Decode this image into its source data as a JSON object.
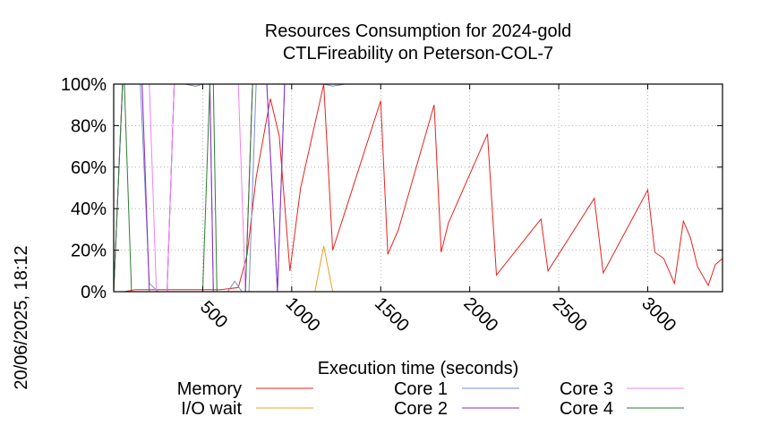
{
  "chart_data": {
    "type": "line",
    "title": "Resources Consumption for 2024-gold",
    "subtitle": "CTLFireability on Peterson-COL-7",
    "xlabel": "Execution time (seconds)",
    "ylabel": "",
    "side_label": "20/06/2025, 18:12",
    "xlim": [
      0,
      3420
    ],
    "ylim": [
      0,
      100
    ],
    "x_ticks": [
      500,
      1000,
      1500,
      2000,
      2500,
      3000
    ],
    "y_ticks": [
      0,
      20,
      40,
      60,
      80,
      100
    ],
    "y_tick_labels": [
      "0%",
      "20%",
      "40%",
      "60%",
      "80%",
      "100%"
    ],
    "grid": true,
    "legend_position": "bottom",
    "series": [
      {
        "name": "Memory",
        "color": "#e8231e",
        "points": [
          [
            0,
            0
          ],
          [
            60,
            0
          ],
          [
            120,
            1
          ],
          [
            200,
            1
          ],
          [
            300,
            1
          ],
          [
            400,
            1
          ],
          [
            500,
            1
          ],
          [
            600,
            1
          ],
          [
            700,
            2
          ],
          [
            750,
            18
          ],
          [
            800,
            55
          ],
          [
            880,
            93
          ],
          [
            930,
            75
          ],
          [
            990,
            10
          ],
          [
            1050,
            50
          ],
          [
            1180,
            100
          ],
          [
            1230,
            20
          ],
          [
            1500,
            92
          ],
          [
            1540,
            18
          ],
          [
            1600,
            30
          ],
          [
            1800,
            90
          ],
          [
            1840,
            19
          ],
          [
            1880,
            33
          ],
          [
            2100,
            76
          ],
          [
            2150,
            8
          ],
          [
            2400,
            35
          ],
          [
            2440,
            10
          ],
          [
            2700,
            45
          ],
          [
            2750,
            9
          ],
          [
            3000,
            49
          ],
          [
            3040,
            19
          ],
          [
            3090,
            16
          ],
          [
            3150,
            4
          ],
          [
            3200,
            34
          ],
          [
            3240,
            26
          ],
          [
            3280,
            12
          ],
          [
            3340,
            3
          ],
          [
            3380,
            13
          ],
          [
            3420,
            16
          ]
        ]
      },
      {
        "name": "I/O wait",
        "color": "#f0a020",
        "points": [
          [
            0,
            0
          ],
          [
            1130,
            0
          ],
          [
            1180,
            22
          ],
          [
            1230,
            0
          ],
          [
            3420,
            0
          ]
        ]
      },
      {
        "name": "Core 1",
        "color": "#7a8ccc",
        "points": [
          [
            0,
            0
          ],
          [
            50,
            100
          ],
          [
            150,
            100
          ],
          [
            200,
            4
          ],
          [
            250,
            0
          ],
          [
            300,
            0
          ],
          [
            340,
            100
          ],
          [
            400,
            100
          ],
          [
            460,
            99
          ],
          [
            500,
            100
          ],
          [
            540,
            100
          ],
          [
            560,
            0
          ],
          [
            640,
            0
          ],
          [
            680,
            5
          ],
          [
            720,
            0
          ],
          [
            760,
            0
          ],
          [
            800,
            100
          ],
          [
            860,
            100
          ],
          [
            920,
            0
          ],
          [
            960,
            100
          ],
          [
            1180,
            100
          ],
          [
            1230,
            99
          ],
          [
            1300,
            100
          ],
          [
            3420,
            100
          ]
        ]
      },
      {
        "name": "Core 2",
        "color": "#8a2bc8",
        "points": [
          [
            0,
            0
          ],
          [
            50,
            100
          ],
          [
            160,
            100
          ],
          [
            200,
            0
          ],
          [
            300,
            0
          ],
          [
            340,
            100
          ],
          [
            480,
            100
          ],
          [
            500,
            100
          ],
          [
            540,
            100
          ],
          [
            560,
            0
          ],
          [
            740,
            0
          ],
          [
            780,
            100
          ],
          [
            860,
            100
          ],
          [
            920,
            0
          ],
          [
            960,
            100
          ],
          [
            1180,
            100
          ],
          [
            1230,
            100
          ],
          [
            3420,
            100
          ]
        ]
      },
      {
        "name": "Core 3",
        "color": "#f080f0",
        "points": [
          [
            0,
            0
          ],
          [
            50,
            100
          ],
          [
            200,
            100
          ],
          [
            240,
            0
          ],
          [
            300,
            0
          ],
          [
            340,
            100
          ],
          [
            400,
            100
          ],
          [
            500,
            100
          ],
          [
            540,
            100
          ],
          [
            700,
            100
          ],
          [
            740,
            0
          ],
          [
            780,
            100
          ],
          [
            3420,
            100
          ]
        ]
      },
      {
        "name": "Core 4",
        "color": "#2e7d32",
        "points": [
          [
            0,
            0
          ],
          [
            50,
            100
          ],
          [
            60,
            100
          ],
          [
            100,
            0
          ],
          [
            480,
            0
          ],
          [
            500,
            0
          ],
          [
            540,
            100
          ],
          [
            560,
            100
          ],
          [
            580,
            0
          ],
          [
            740,
            0
          ],
          [
            780,
            100
          ],
          [
            3420,
            100
          ]
        ]
      }
    ]
  }
}
